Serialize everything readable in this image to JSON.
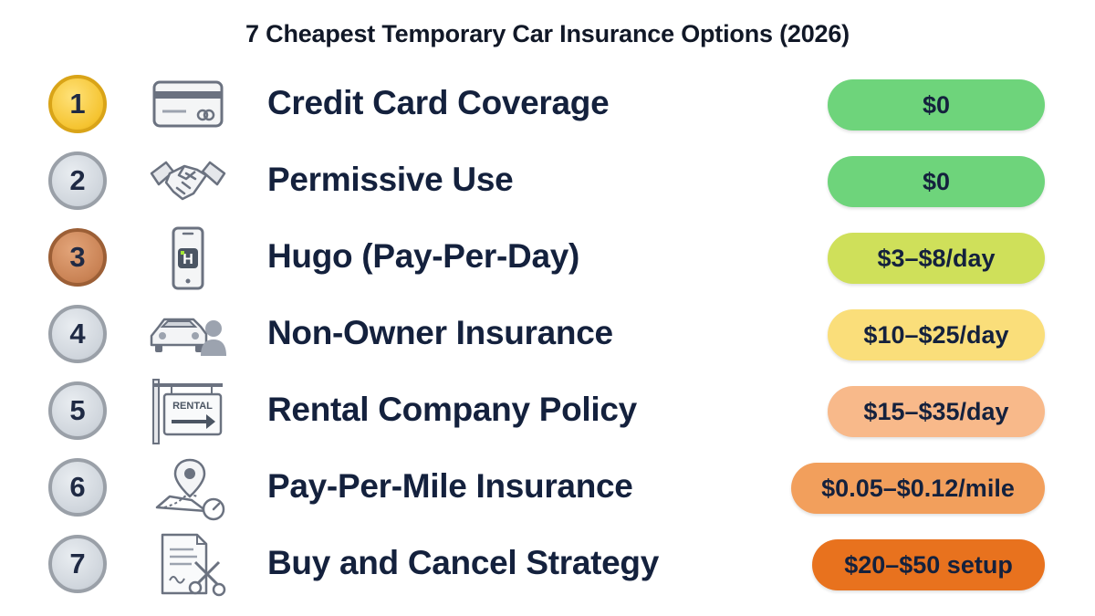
{
  "title": "7 Cheapest Temporary Car Insurance Options (2026)",
  "options": [
    {
      "rank": "1",
      "medal": "gold",
      "icon": "credit-card-icon",
      "label": "Credit Card Coverage",
      "price": "$0",
      "color": "#6ed47b"
    },
    {
      "rank": "2",
      "medal": "silver",
      "icon": "handshake-icon",
      "label": "Permissive Use",
      "price": "$0",
      "color": "#6ed47b"
    },
    {
      "rank": "3",
      "medal": "bronze",
      "icon": "smartphone-app-icon",
      "label": "Hugo (Pay-Per-Day)",
      "price": "$3–$8/day",
      "icon_text": "H",
      "color": "#cfe05a"
    },
    {
      "rank": "4",
      "medal": "silver",
      "icon": "car-and-person-icon",
      "label": "Non-Owner Insurance",
      "price": "$10–$25/day",
      "color": "#fade7a"
    },
    {
      "rank": "5",
      "medal": "silver",
      "icon": "rental-sign-icon",
      "label": "Rental Company Policy",
      "price": "$15–$35/day",
      "icon_text": "RENTAL",
      "color": "#f8b98a"
    },
    {
      "rank": "6",
      "medal": "silver",
      "icon": "map-pin-odometer-icon",
      "label": "Pay-Per-Mile Insurance",
      "price": "$0.05–$0.12/mile",
      "color": "#f29f5c"
    },
    {
      "rank": "7",
      "medal": "silver",
      "icon": "document-scissors-icon",
      "label": "Buy and Cancel Strategy",
      "price": "$20–$50 setup",
      "color": "#e8721e"
    }
  ]
}
